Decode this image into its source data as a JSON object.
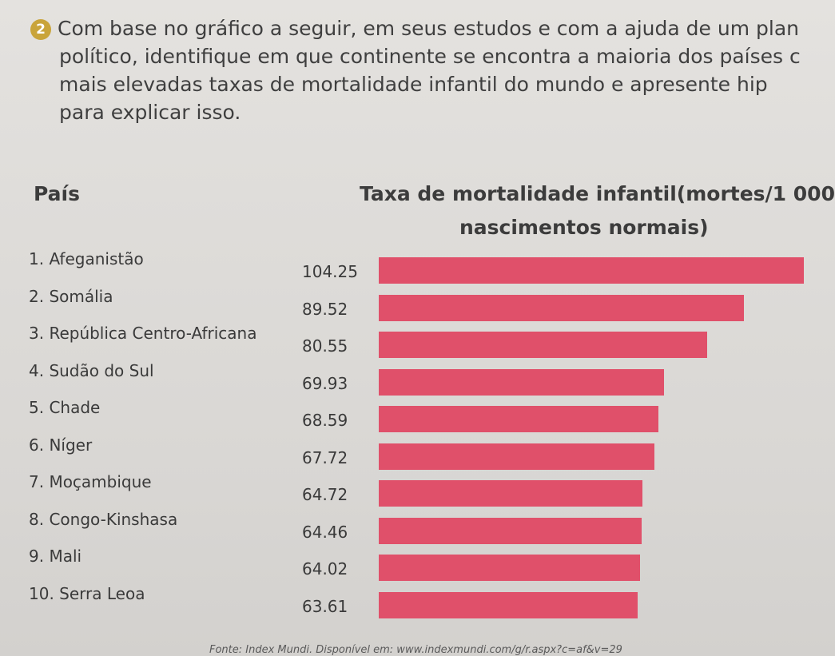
{
  "question": {
    "number": "2",
    "line1": "Com base no gráfico a seguir, em seus estudos e com a ajuda de um plan",
    "line2": "político, identifique em que continente se encontra a maioria dos países c",
    "line3": "mais elevadas taxas de mortalidade infantil do mundo e apresente hip",
    "line4": "para explicar isso."
  },
  "headers": {
    "country": "País",
    "rate_line1": "Taxa de mortalidade infantil(mortes/1 000",
    "rate_line2": "nascimentos normais)"
  },
  "chart_data": {
    "type": "bar",
    "orientation": "horizontal",
    "title": "",
    "xlabel": "Taxa de mortalidade infantil(mortes/1 000 nascimentos normais)",
    "ylabel": "País",
    "categories": [
      "1. Afeganistão",
      "2. Somália",
      "3. República Centro-Africana",
      "4. Sudão do Sul",
      "5. Chade",
      "6. Níger",
      "7. Moçambique",
      "8. Congo-Kinshasa",
      "9. Mali",
      "10. Serra Leoa"
    ],
    "values": [
      104.25,
      89.52,
      80.55,
      69.93,
      68.59,
      67.72,
      64.72,
      64.46,
      64.02,
      63.61
    ],
    "value_labels": [
      "104.25",
      "89.52",
      "80.55",
      "69.93",
      "68.59",
      "67.72",
      "64.72",
      "64.46",
      "64.02",
      "63.61"
    ],
    "bar_color": "#e0506a",
    "grid": false
  },
  "source": "Fonte: Index Mundi. Disponível em: www.indexmundi.com/g/r.aspx?c=af&v=29"
}
